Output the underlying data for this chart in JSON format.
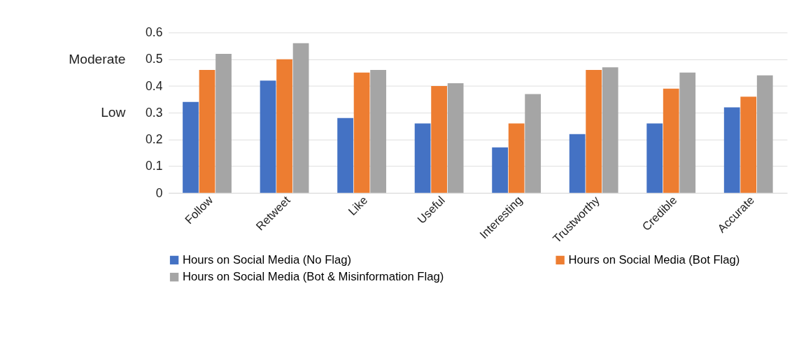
{
  "chart_data": {
    "type": "bar",
    "categories": [
      "Follow",
      "Retweet",
      "Like",
      "Useful",
      "Interesting",
      "Trustworthy",
      "Credible",
      "Accurate"
    ],
    "series": [
      {
        "name": "Hours on Social Media (No Flag)",
        "color": "#4472c4",
        "values": [
          0.34,
          0.42,
          0.28,
          0.26,
          0.17,
          0.22,
          0.26,
          0.32
        ]
      },
      {
        "name": "Hours on Social Media (Bot Flag)",
        "color": "#ed7d31",
        "values": [
          0.46,
          0.5,
          0.45,
          0.4,
          0.26,
          0.46,
          0.39,
          0.36
        ]
      },
      {
        "name": "Hours on Social Media (Bot & Misinformation Flag)",
        "color": "#a5a5a5",
        "values": [
          0.52,
          0.56,
          0.46,
          0.41,
          0.37,
          0.47,
          0.45,
          0.44
        ]
      }
    ],
    "ylim": [
      0,
      0.6
    ],
    "yticks": [
      0,
      0.1,
      0.2,
      0.3,
      0.4,
      0.5,
      0.6
    ],
    "grid": "y",
    "legend": "bottom",
    "annotations": [
      "Moderate",
      "Low"
    ]
  }
}
